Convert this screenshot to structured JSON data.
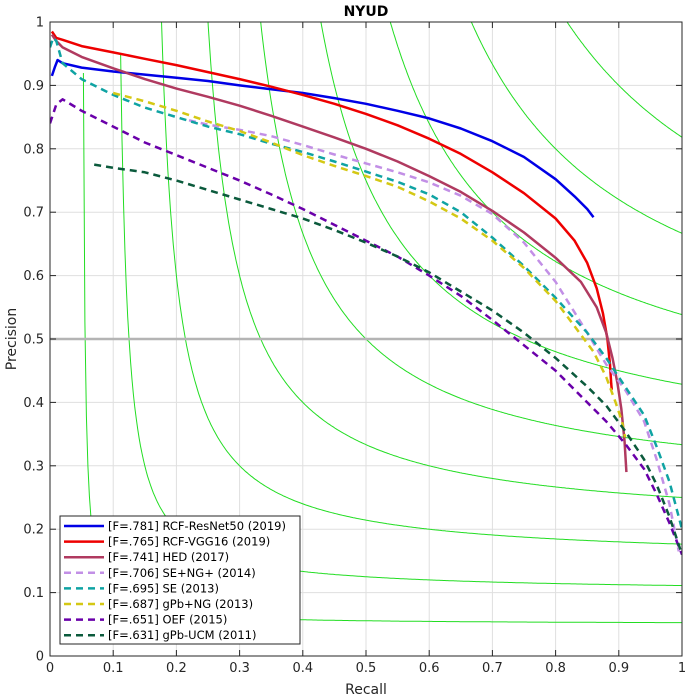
{
  "chart_data": {
    "type": "line",
    "title": "NYUD",
    "xlabel": "Recall",
    "ylabel": "Precision",
    "xlim": [
      0,
      1
    ],
    "ylim": [
      0,
      1
    ],
    "xticks": [
      "0",
      "0.1",
      "0.2",
      "0.3",
      "0.4",
      "0.5",
      "0.6",
      "0.7",
      "0.8",
      "0.9",
      "1"
    ],
    "yticks": [
      "0",
      "0.1",
      "0.2",
      "0.3",
      "0.4",
      "0.5",
      "0.6",
      "0.7",
      "0.8",
      "0.9",
      "1"
    ],
    "grid": true,
    "legend_position": "bottom-left",
    "reference_line": {
      "y": 0.5,
      "color": "#b4b4b4"
    },
    "iso_f_lines": {
      "color": "#22dd22",
      "values": [
        0.1,
        0.2,
        0.3,
        0.4,
        0.5,
        0.6,
        0.7,
        0.8,
        0.9
      ]
    },
    "series": [
      {
        "name": "[F=.781] RCF-ResNet50 (2019)",
        "color": "#0000e6",
        "dashed": false,
        "x": [
          0.003,
          0.008,
          0.012,
          0.02,
          0.05,
          0.1,
          0.15,
          0.2,
          0.25,
          0.3,
          0.35,
          0.4,
          0.45,
          0.5,
          0.55,
          0.6,
          0.65,
          0.7,
          0.75,
          0.8,
          0.83,
          0.85,
          0.86
        ],
        "y": [
          0.915,
          0.93,
          0.94,
          0.935,
          0.928,
          0.922,
          0.917,
          0.912,
          0.907,
          0.9,
          0.894,
          0.888,
          0.88,
          0.871,
          0.86,
          0.848,
          0.832,
          0.812,
          0.787,
          0.752,
          0.725,
          0.705,
          0.692
        ]
      },
      {
        "name": "[F=.765] RCF-VGG16 (2019)",
        "color": "#ee0000",
        "dashed": false,
        "x": [
          0.003,
          0.01,
          0.02,
          0.05,
          0.1,
          0.15,
          0.2,
          0.25,
          0.3,
          0.35,
          0.4,
          0.45,
          0.5,
          0.55,
          0.6,
          0.65,
          0.7,
          0.75,
          0.8,
          0.83,
          0.85,
          0.865,
          0.875,
          0.882,
          0.886,
          0.888,
          0.889
        ],
        "y": [
          0.985,
          0.975,
          0.972,
          0.962,
          0.952,
          0.942,
          0.932,
          0.921,
          0.91,
          0.898,
          0.885,
          0.871,
          0.855,
          0.837,
          0.816,
          0.792,
          0.763,
          0.73,
          0.69,
          0.655,
          0.62,
          0.58,
          0.54,
          0.5,
          0.46,
          0.43,
          0.42
        ]
      },
      {
        "name": "[F=.741] HED (2017)",
        "color": "#b03a60",
        "dashed": false,
        "x": [
          0.003,
          0.01,
          0.02,
          0.05,
          0.1,
          0.15,
          0.2,
          0.25,
          0.3,
          0.35,
          0.4,
          0.45,
          0.5,
          0.55,
          0.6,
          0.65,
          0.7,
          0.75,
          0.8,
          0.84,
          0.865,
          0.88,
          0.89,
          0.898,
          0.904,
          0.909,
          0.912
        ],
        "y": [
          0.98,
          0.97,
          0.96,
          0.945,
          0.927,
          0.91,
          0.895,
          0.882,
          0.868,
          0.852,
          0.835,
          0.818,
          0.8,
          0.78,
          0.757,
          0.732,
          0.702,
          0.668,
          0.628,
          0.59,
          0.55,
          0.51,
          0.47,
          0.43,
          0.39,
          0.34,
          0.29
        ]
      },
      {
        "name": "[F=.706] SE+NG+ (2014)",
        "color": "#c28fe6",
        "dashed": true,
        "x": [
          0.22,
          0.25,
          0.3,
          0.35,
          0.4,
          0.45,
          0.5,
          0.55,
          0.6,
          0.65,
          0.7,
          0.75,
          0.8,
          0.85,
          0.88,
          0.91,
          0.94,
          0.96,
          0.98,
          0.995
        ],
        "y": [
          0.845,
          0.838,
          0.83,
          0.82,
          0.806,
          0.791,
          0.777,
          0.763,
          0.747,
          0.726,
          0.697,
          0.652,
          0.59,
          0.51,
          0.46,
          0.42,
          0.37,
          0.31,
          0.24,
          0.165
        ]
      },
      {
        "name": "[F=.695] SE (2013)",
        "color": "#0fa3a3",
        "dashed": true,
        "x": [
          0.0,
          0.005,
          0.01,
          0.02,
          0.05,
          0.1,
          0.15,
          0.2,
          0.25,
          0.3,
          0.35,
          0.4,
          0.45,
          0.5,
          0.55,
          0.6,
          0.65,
          0.7,
          0.75,
          0.8,
          0.85,
          0.88,
          0.91,
          0.94,
          0.96,
          0.98,
          1.0
        ],
        "y": [
          0.96,
          0.975,
          0.97,
          0.935,
          0.91,
          0.885,
          0.865,
          0.85,
          0.835,
          0.823,
          0.808,
          0.795,
          0.78,
          0.764,
          0.748,
          0.728,
          0.7,
          0.66,
          0.615,
          0.565,
          0.51,
          0.47,
          0.425,
          0.38,
          0.33,
          0.275,
          0.2
        ]
      },
      {
        "name": "[F=.687] gPb+NG (2013)",
        "color": "#d4c814",
        "dashed": true,
        "x": [
          0.1,
          0.15,
          0.2,
          0.25,
          0.3,
          0.35,
          0.4,
          0.45,
          0.5,
          0.55,
          0.6,
          0.65,
          0.7,
          0.75,
          0.8,
          0.83,
          0.86,
          0.88,
          0.895,
          0.905,
          0.91
        ],
        "y": [
          0.888,
          0.875,
          0.86,
          0.843,
          0.828,
          0.81,
          0.79,
          0.773,
          0.757,
          0.74,
          0.717,
          0.69,
          0.655,
          0.612,
          0.56,
          0.52,
          0.48,
          0.44,
          0.4,
          0.37,
          0.345
        ]
      },
      {
        "name": "[F=.651] OEF (2015)",
        "color": "#6a00aa",
        "dashed": true,
        "x": [
          0.0,
          0.005,
          0.01,
          0.02,
          0.05,
          0.1,
          0.15,
          0.2,
          0.25,
          0.3,
          0.35,
          0.4,
          0.45,
          0.5,
          0.55,
          0.6,
          0.65,
          0.7,
          0.75,
          0.8,
          0.85,
          0.88,
          0.91,
          0.94,
          0.96,
          0.98,
          1.0
        ],
        "y": [
          0.84,
          0.855,
          0.87,
          0.878,
          0.86,
          0.835,
          0.81,
          0.79,
          0.77,
          0.75,
          0.728,
          0.705,
          0.68,
          0.655,
          0.63,
          0.6,
          0.568,
          0.53,
          0.49,
          0.45,
          0.4,
          0.37,
          0.335,
          0.295,
          0.255,
          0.21,
          0.16
        ]
      },
      {
        "name": "[F=.631] gPb-UCM (2011)",
        "color": "#0b5a3c",
        "dashed": true,
        "x": [
          0.07,
          0.1,
          0.15,
          0.2,
          0.25,
          0.3,
          0.35,
          0.4,
          0.45,
          0.5,
          0.55,
          0.6,
          0.65,
          0.7,
          0.75,
          0.8,
          0.85,
          0.88,
          0.91,
          0.94,
          0.96,
          0.98,
          1.0
        ],
        "y": [
          0.775,
          0.77,
          0.763,
          0.75,
          0.735,
          0.72,
          0.705,
          0.69,
          0.672,
          0.652,
          0.63,
          0.605,
          0.575,
          0.545,
          0.51,
          0.47,
          0.425,
          0.395,
          0.355,
          0.31,
          0.27,
          0.22,
          0.16
        ]
      }
    ]
  }
}
